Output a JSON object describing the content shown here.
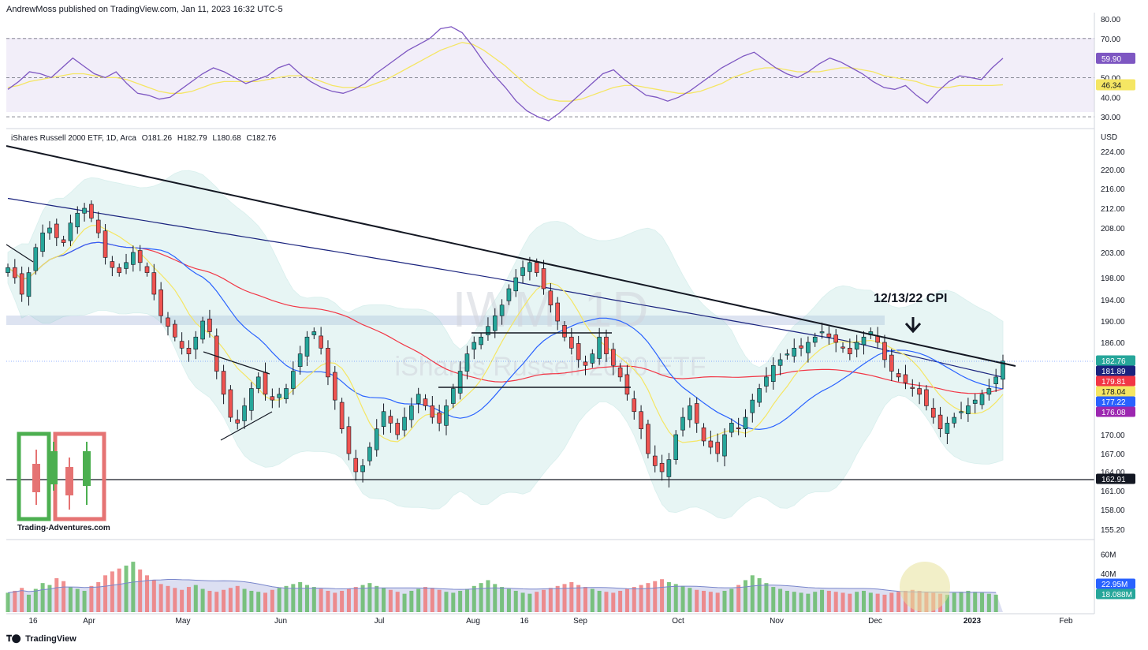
{
  "header": {
    "published": "AndrewMoss published on TradingView.com, Jan 11, 2023 16:32 UTC-5"
  },
  "legend": {
    "name": "iShares Russell 2000 ETF, 1D, Arca",
    "o": "O181.26",
    "h": "H182.79",
    "l": "L180.68",
    "c": "C182.76"
  },
  "watermark": {
    "symbol": "IWM, 1D",
    "name": "iShares Russell 2000 ETF"
  },
  "annotation": {
    "text": "12/13/22 CPI"
  },
  "logo": {
    "text": "Trading-Adventures.com"
  },
  "footer": {
    "brand": "TradingView",
    "icon": "tradingview-logo-icon"
  },
  "colors": {
    "up": "#26a69a",
    "down": "#ef5350",
    "rsi": "#7e57c2",
    "rsi_ma": "#f5e663",
    "ema_yellow": "#f5e663",
    "sma_blue": "#2962ff",
    "sma_red": "#f23645",
    "sma_purple": "#9c27b0",
    "bb_fill": "#b2dfdb"
  },
  "chart_data": [
    {
      "type": "line",
      "panel": "RSI",
      "yaxis_ticks": [
        "80.00",
        "70.00",
        "50.00",
        "40.00",
        "30.00"
      ],
      "ylim": [
        26,
        80
      ],
      "levels": [
        70,
        50,
        30
      ],
      "series": [
        {
          "values": [
            44,
            48,
            53,
            52,
            50,
            55,
            60,
            56,
            52,
            50,
            53,
            47,
            42,
            41,
            39,
            40,
            44,
            48,
            52,
            55,
            53,
            50,
            47,
            49,
            51,
            55,
            57,
            52,
            48,
            45,
            43,
            42,
            44,
            47,
            52,
            56,
            60,
            64,
            67,
            70,
            75,
            76,
            73,
            66,
            58,
            51,
            45,
            38,
            33,
            30,
            28,
            32,
            37,
            42,
            47,
            52,
            54,
            49,
            45,
            41,
            40,
            38,
            40,
            43,
            47,
            51,
            55,
            58,
            61,
            63,
            59,
            55,
            52,
            50,
            53,
            57,
            60,
            58,
            55,
            52,
            48,
            45,
            44,
            46,
            41,
            37,
            43,
            48,
            51,
            50,
            49,
            55,
            59.9
          ]
        },
        {
          "values": [
            45,
            46,
            48,
            49,
            50,
            51,
            52,
            52,
            51,
            50,
            50,
            49,
            47,
            45,
            43,
            42,
            42,
            43,
            45,
            47,
            48,
            48,
            48,
            48,
            49,
            50,
            51,
            51,
            50,
            48,
            46,
            45,
            45,
            45,
            47,
            49,
            52,
            55,
            58,
            61,
            64,
            66,
            68,
            67,
            64,
            60,
            56,
            51,
            46,
            42,
            39,
            38,
            38,
            39,
            41,
            43,
            45,
            46,
            46,
            45,
            44,
            43,
            42,
            42,
            43,
            45,
            47,
            50,
            52,
            54,
            55,
            55,
            54,
            53,
            53,
            53,
            54,
            55,
            55,
            54,
            53,
            51,
            50,
            49,
            48,
            46,
            45,
            45,
            46,
            46,
            46,
            46,
            46.34
          ]
        }
      ],
      "price_labels": [
        "59.90",
        "46.34"
      ]
    },
    {
      "type": "candlestick",
      "panel": "price",
      "title": "iShares Russell 2000 ETF, 1D, Arca",
      "yaxis_label": "USD",
      "yaxis_ticks": [
        "224.00",
        "220.00",
        "216.00",
        "212.00",
        "208.00",
        "203.00",
        "198.00",
        "194.00",
        "190.00",
        "186.00",
        "170.00",
        "167.00",
        "164.00",
        "161.00",
        "158.00",
        "155.20"
      ],
      "ylim": [
        155,
        226
      ],
      "xaxis_ticks": [
        "16",
        "Apr",
        "May",
        "Jun",
        "Jul",
        "Aug",
        "16",
        "Sep",
        "Oct",
        "Nov",
        "Dec",
        "2023",
        "Feb"
      ],
      "support_level": 162.91,
      "price_labels": [
        {
          "text": "182.76",
          "color": "#26a69a"
        },
        {
          "text": "181.89",
          "color": "#1a237e"
        },
        {
          "text": "179.81",
          "color": "#f23645"
        },
        {
          "text": "178.04",
          "color": "#f5e663"
        },
        {
          "text": "177.22",
          "color": "#2962ff"
        },
        {
          "text": "176.08",
          "color": "#9c27b0"
        },
        {
          "text": "162.91",
          "color": "#131722"
        }
      ],
      "closes": [
        200,
        198,
        195,
        199,
        204,
        207,
        208,
        206,
        205,
        209,
        211,
        212,
        210,
        207,
        202,
        200,
        199,
        201,
        203,
        201,
        199,
        195,
        191,
        189,
        187,
        185,
        184,
        187,
        190,
        188,
        181,
        177,
        173,
        172,
        175,
        178,
        180,
        177,
        176,
        177,
        178,
        181,
        184,
        187,
        188,
        185,
        180,
        176,
        171,
        167,
        164,
        165,
        168,
        171,
        174,
        172,
        170,
        173,
        175,
        177,
        175,
        173,
        172,
        175,
        178,
        181,
        184,
        186,
        187,
        189,
        191,
        193,
        196,
        198,
        200,
        201,
        199,
        196,
        193,
        190,
        187,
        185,
        183,
        182,
        184,
        187,
        184,
        182,
        180,
        177,
        174,
        171,
        167,
        165,
        164,
        166,
        170,
        173,
        175,
        172,
        169,
        168,
        167,
        170,
        172,
        171,
        173,
        176,
        178,
        180,
        182,
        183,
        184,
        185,
        185,
        186,
        187,
        188,
        187,
        186,
        185,
        184,
        186,
        187,
        188,
        186,
        183,
        181,
        180,
        179,
        178,
        177,
        175,
        173,
        171,
        172,
        173,
        174,
        175,
        176,
        177,
        178,
        180,
        182.76
      ]
    },
    {
      "type": "bar",
      "panel": "volume",
      "yaxis_ticks": [
        "60M",
        "40M"
      ],
      "ylim": [
        0,
        70
      ],
      "price_labels": [
        {
          "text": "22.95M",
          "color": "#2962ff"
        },
        {
          "text": "18.088M",
          "color": "#26a69a"
        }
      ],
      "values": [
        20,
        22,
        25,
        18,
        24,
        30,
        28,
        35,
        32,
        26,
        24,
        22,
        27,
        31,
        38,
        42,
        45,
        48,
        52,
        44,
        38,
        33,
        29,
        27,
        25,
        23,
        26,
        28,
        24,
        22,
        21,
        23,
        25,
        27,
        24,
        22,
        21,
        20,
        23,
        25,
        27,
        29,
        31,
        28,
        26,
        24,
        22,
        20,
        22,
        24,
        26,
        28,
        30,
        27,
        25,
        23,
        21,
        19,
        22,
        24,
        26,
        25,
        23,
        21,
        20,
        22,
        24,
        27,
        30,
        33,
        29,
        26,
        24,
        22,
        20,
        19,
        21,
        23,
        25,
        27,
        29,
        31,
        28,
        26,
        24,
        22,
        21,
        20,
        22,
        24,
        26,
        28,
        30,
        32,
        34,
        31,
        29,
        27,
        25,
        23,
        22,
        21,
        20,
        22,
        24,
        28,
        33,
        38,
        35,
        30,
        26,
        24,
        22,
        21,
        20,
        19,
        21,
        23,
        22,
        21,
        20,
        19,
        21,
        22,
        20,
        19,
        18,
        20,
        21,
        22,
        23,
        22,
        21,
        20,
        19,
        18,
        20,
        21,
        22,
        21,
        20,
        19,
        18
      ]
    }
  ]
}
